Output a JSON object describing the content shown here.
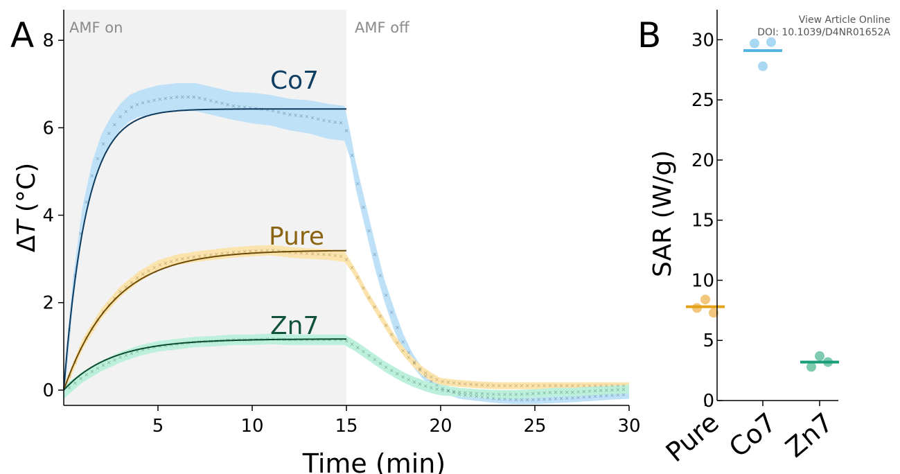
{
  "watermark": {
    "line1": "View Article Online",
    "line2": "DOI: 10.1039/D4NR01652A"
  },
  "colors": {
    "co7_band": "#bfe1f8",
    "co7_line": "#0d3a5c",
    "co7_label": "#0f3e63",
    "pure_band": "#fbe3ad",
    "pure_line": "#6b4a05",
    "pure_label": "#8a6410",
    "zn7_band": "#bdf0dc",
    "zn7_line": "#0b4a2c",
    "zn7_label": "#10523a",
    "amf_on_shade": "#f2f2f2",
    "pure_point": "#f2c77d",
    "pure_mean": "#e3a21a",
    "co7_point": "#a9d8f3",
    "co7_mean": "#54b2e6",
    "zn7_point": "#7fcbb0",
    "zn7_mean": "#1a9e77"
  },
  "chart_data": [
    {
      "type": "line",
      "panel_label": "A",
      "xlabel": "Time (min)",
      "ylabel_prefix": "Δ",
      "ylabel_var": "T",
      "ylabel_unit": " (°C)",
      "xlim": [
        0,
        30
      ],
      "ylim": [
        -0.35,
        8.7
      ],
      "xticks": [
        5,
        10,
        15,
        20,
        25,
        30
      ],
      "yticks": [
        0,
        2,
        4,
        6,
        8
      ],
      "grid": false,
      "regions": [
        {
          "label": "AMF on",
          "x": [
            0,
            15
          ]
        },
        {
          "label": "AMF off",
          "x": [
            15,
            30
          ]
        }
      ],
      "series": [
        {
          "name": "Co7",
          "band_x": [
            0,
            0.5,
            1,
            1.5,
            2,
            2.5,
            3,
            3.5,
            4,
            5,
            6,
            7,
            8,
            9,
            10,
            11,
            12,
            13,
            14,
            14.9,
            15.2,
            15.5,
            16,
            16.5,
            17,
            17.5,
            18,
            18.5,
            19,
            19.5,
            20,
            21,
            22,
            23,
            24,
            25,
            26,
            27,
            28,
            29,
            30
          ],
          "band_mean": [
            0,
            2.3,
            3.9,
            4.9,
            5.55,
            5.95,
            6.25,
            6.45,
            6.55,
            6.65,
            6.7,
            6.7,
            6.6,
            6.5,
            6.45,
            6.4,
            6.3,
            6.25,
            6.15,
            6.1,
            5.6,
            4.9,
            4.0,
            3.1,
            2.3,
            1.65,
            1.1,
            0.7,
            0.4,
            0.2,
            0.05,
            -0.1,
            -0.15,
            -0.2,
            -0.22,
            -0.22,
            -0.2,
            -0.18,
            -0.15,
            -0.12,
            -0.1
          ],
          "band_halfwidth": [
            0.3,
            0.3,
            0.3,
            0.3,
            0.3,
            0.3,
            0.3,
            0.3,
            0.3,
            0.32,
            0.32,
            0.32,
            0.32,
            0.32,
            0.35,
            0.35,
            0.36,
            0.38,
            0.4,
            0.4,
            0.3,
            0.3,
            0.3,
            0.3,
            0.25,
            0.25,
            0.2,
            0.15,
            0.12,
            0.1,
            0.1,
            0.1,
            0.1,
            0.1,
            0.1,
            0.1,
            0.1,
            0.1,
            0.1,
            0.1,
            0.1
          ],
          "fit": {
            "model": "1-exp",
            "amplitude": 6.43,
            "tau_min": 1.2,
            "x_range": [
              0,
              15
            ]
          }
        },
        {
          "name": "Pure",
          "band_x": [
            0,
            1,
            2,
            3,
            4,
            5,
            6,
            7,
            8,
            9,
            10,
            11,
            12,
            13,
            14,
            14.9,
            15.3,
            15.7,
            16,
            16.5,
            17,
            17.5,
            18,
            18.5,
            19,
            19.5,
            20,
            21,
            22,
            23,
            24,
            25,
            26,
            27,
            28,
            29,
            30
          ],
          "band_mean": [
            0,
            1.05,
            1.75,
            2.25,
            2.6,
            2.85,
            2.98,
            3.05,
            3.1,
            3.15,
            3.18,
            3.2,
            3.15,
            3.12,
            3.1,
            3.05,
            2.8,
            2.5,
            2.25,
            1.9,
            1.55,
            1.2,
            0.9,
            0.65,
            0.45,
            0.3,
            0.2,
            0.15,
            0.12,
            0.1,
            0.1,
            0.1,
            0.1,
            0.1,
            0.1,
            0.1,
            0.1
          ],
          "band_halfwidth": [
            0.1,
            0.12,
            0.12,
            0.12,
            0.12,
            0.12,
            0.12,
            0.12,
            0.12,
            0.12,
            0.12,
            0.12,
            0.12,
            0.12,
            0.12,
            0.12,
            0.1,
            0.1,
            0.1,
            0.1,
            0.1,
            0.1,
            0.1,
            0.1,
            0.1,
            0.1,
            0.08,
            0.08,
            0.08,
            0.08,
            0.08,
            0.08,
            0.08,
            0.08,
            0.08,
            0.08,
            0.08
          ],
          "fit": {
            "model": "1-exp",
            "amplitude": 3.2,
            "tau_min": 2.6,
            "x_range": [
              0,
              15
            ]
          }
        },
        {
          "name": "Zn7",
          "band_x": [
            0,
            1,
            2,
            3,
            4,
            5,
            6,
            7,
            8,
            9,
            10,
            11,
            12,
            13,
            14,
            14.9,
            15.5,
            16,
            16.5,
            17,
            17.5,
            18,
            18.5,
            19,
            19.5,
            20,
            21,
            22,
            23,
            24,
            25,
            26,
            27,
            28,
            29,
            30
          ],
          "band_mean": [
            -0.05,
            0.3,
            0.55,
            0.75,
            0.9,
            1.0,
            1.05,
            1.1,
            1.12,
            1.15,
            1.15,
            1.17,
            1.15,
            1.15,
            1.15,
            1.15,
            1.0,
            0.85,
            0.7,
            0.55,
            0.42,
            0.3,
            0.2,
            0.12,
            0.05,
            0.0,
            -0.05,
            -0.08,
            -0.1,
            -0.1,
            -0.08,
            -0.05,
            -0.05,
            -0.02,
            0.0,
            0.02
          ],
          "band_halfwidth": [
            0.15,
            0.12,
            0.12,
            0.12,
            0.12,
            0.12,
            0.12,
            0.12,
            0.12,
            0.12,
            0.12,
            0.12,
            0.12,
            0.12,
            0.12,
            0.12,
            0.12,
            0.12,
            0.12,
            0.12,
            0.12,
            0.12,
            0.12,
            0.12,
            0.12,
            0.12,
            0.1,
            0.1,
            0.1,
            0.1,
            0.1,
            0.1,
            0.1,
            0.1,
            0.1,
            0.1
          ],
          "fit": {
            "model": "1-exp",
            "amplitude": 1.17,
            "tau_min": 2.5,
            "x_range": [
              0,
              15
            ]
          }
        }
      ]
    },
    {
      "type": "scatter",
      "panel_label": "B",
      "ylabel": "SAR (W/g)",
      "categories": [
        "Pure",
        "Co7",
        "Zn7"
      ],
      "ylim": [
        0,
        32.5
      ],
      "yticks": [
        0,
        5,
        10,
        15,
        20,
        25,
        30
      ],
      "grid": false,
      "points": [
        {
          "category": "Pure",
          "values": [
            7.7,
            8.4,
            7.3
          ]
        },
        {
          "category": "Co7",
          "values": [
            29.7,
            27.8,
            29.8
          ]
        },
        {
          "category": "Zn7",
          "values": [
            2.8,
            3.7,
            3.2
          ]
        }
      ],
      "means": [
        7.8,
        29.1,
        3.2
      ]
    }
  ]
}
